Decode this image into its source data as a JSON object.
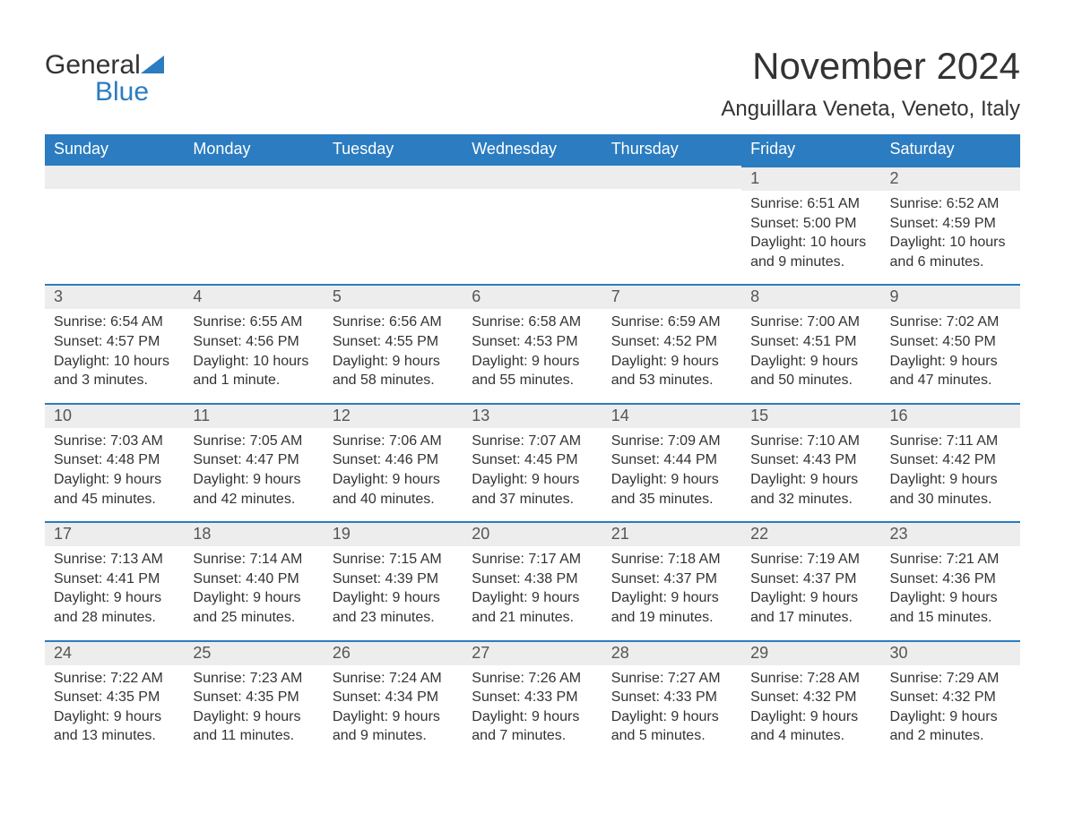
{
  "logo": {
    "text_main": "General",
    "text_accent": "Blue",
    "main_color": "#333333",
    "accent_color": "#2b7cc0"
  },
  "title": "November 2024",
  "location": "Anguillara Veneta, Veneto, Italy",
  "weekdays": [
    "Sunday",
    "Monday",
    "Tuesday",
    "Wednesday",
    "Thursday",
    "Friday",
    "Saturday"
  ],
  "colors": {
    "header_bg": "#2b7cc0",
    "header_text": "#ffffff",
    "day_header_bg": "#ededed",
    "day_border": "#2b7cc0",
    "body_text": "#333333",
    "day_num_text": "#555555",
    "page_bg": "#ffffff"
  },
  "typography": {
    "title_fontsize": 42,
    "location_fontsize": 24,
    "weekday_fontsize": 18,
    "daynum_fontsize": 18,
    "body_fontsize": 16
  },
  "layout": {
    "type": "calendar",
    "columns": 7,
    "rows": 5,
    "leading_blanks": 5
  },
  "days": [
    {
      "n": "1",
      "sunrise": "Sunrise: 6:51 AM",
      "sunset": "Sunset: 5:00 PM",
      "daylight": "Daylight: 10 hours and 9 minutes."
    },
    {
      "n": "2",
      "sunrise": "Sunrise: 6:52 AM",
      "sunset": "Sunset: 4:59 PM",
      "daylight": "Daylight: 10 hours and 6 minutes."
    },
    {
      "n": "3",
      "sunrise": "Sunrise: 6:54 AM",
      "sunset": "Sunset: 4:57 PM",
      "daylight": "Daylight: 10 hours and 3 minutes."
    },
    {
      "n": "4",
      "sunrise": "Sunrise: 6:55 AM",
      "sunset": "Sunset: 4:56 PM",
      "daylight": "Daylight: 10 hours and 1 minute."
    },
    {
      "n": "5",
      "sunrise": "Sunrise: 6:56 AM",
      "sunset": "Sunset: 4:55 PM",
      "daylight": "Daylight: 9 hours and 58 minutes."
    },
    {
      "n": "6",
      "sunrise": "Sunrise: 6:58 AM",
      "sunset": "Sunset: 4:53 PM",
      "daylight": "Daylight: 9 hours and 55 minutes."
    },
    {
      "n": "7",
      "sunrise": "Sunrise: 6:59 AM",
      "sunset": "Sunset: 4:52 PM",
      "daylight": "Daylight: 9 hours and 53 minutes."
    },
    {
      "n": "8",
      "sunrise": "Sunrise: 7:00 AM",
      "sunset": "Sunset: 4:51 PM",
      "daylight": "Daylight: 9 hours and 50 minutes."
    },
    {
      "n": "9",
      "sunrise": "Sunrise: 7:02 AM",
      "sunset": "Sunset: 4:50 PM",
      "daylight": "Daylight: 9 hours and 47 minutes."
    },
    {
      "n": "10",
      "sunrise": "Sunrise: 7:03 AM",
      "sunset": "Sunset: 4:48 PM",
      "daylight": "Daylight: 9 hours and 45 minutes."
    },
    {
      "n": "11",
      "sunrise": "Sunrise: 7:05 AM",
      "sunset": "Sunset: 4:47 PM",
      "daylight": "Daylight: 9 hours and 42 minutes."
    },
    {
      "n": "12",
      "sunrise": "Sunrise: 7:06 AM",
      "sunset": "Sunset: 4:46 PM",
      "daylight": "Daylight: 9 hours and 40 minutes."
    },
    {
      "n": "13",
      "sunrise": "Sunrise: 7:07 AM",
      "sunset": "Sunset: 4:45 PM",
      "daylight": "Daylight: 9 hours and 37 minutes."
    },
    {
      "n": "14",
      "sunrise": "Sunrise: 7:09 AM",
      "sunset": "Sunset: 4:44 PM",
      "daylight": "Daylight: 9 hours and 35 minutes."
    },
    {
      "n": "15",
      "sunrise": "Sunrise: 7:10 AM",
      "sunset": "Sunset: 4:43 PM",
      "daylight": "Daylight: 9 hours and 32 minutes."
    },
    {
      "n": "16",
      "sunrise": "Sunrise: 7:11 AM",
      "sunset": "Sunset: 4:42 PM",
      "daylight": "Daylight: 9 hours and 30 minutes."
    },
    {
      "n": "17",
      "sunrise": "Sunrise: 7:13 AM",
      "sunset": "Sunset: 4:41 PM",
      "daylight": "Daylight: 9 hours and 28 minutes."
    },
    {
      "n": "18",
      "sunrise": "Sunrise: 7:14 AM",
      "sunset": "Sunset: 4:40 PM",
      "daylight": "Daylight: 9 hours and 25 minutes."
    },
    {
      "n": "19",
      "sunrise": "Sunrise: 7:15 AM",
      "sunset": "Sunset: 4:39 PM",
      "daylight": "Daylight: 9 hours and 23 minutes."
    },
    {
      "n": "20",
      "sunrise": "Sunrise: 7:17 AM",
      "sunset": "Sunset: 4:38 PM",
      "daylight": "Daylight: 9 hours and 21 minutes."
    },
    {
      "n": "21",
      "sunrise": "Sunrise: 7:18 AM",
      "sunset": "Sunset: 4:37 PM",
      "daylight": "Daylight: 9 hours and 19 minutes."
    },
    {
      "n": "22",
      "sunrise": "Sunrise: 7:19 AM",
      "sunset": "Sunset: 4:37 PM",
      "daylight": "Daylight: 9 hours and 17 minutes."
    },
    {
      "n": "23",
      "sunrise": "Sunrise: 7:21 AM",
      "sunset": "Sunset: 4:36 PM",
      "daylight": "Daylight: 9 hours and 15 minutes."
    },
    {
      "n": "24",
      "sunrise": "Sunrise: 7:22 AM",
      "sunset": "Sunset: 4:35 PM",
      "daylight": "Daylight: 9 hours and 13 minutes."
    },
    {
      "n": "25",
      "sunrise": "Sunrise: 7:23 AM",
      "sunset": "Sunset: 4:35 PM",
      "daylight": "Daylight: 9 hours and 11 minutes."
    },
    {
      "n": "26",
      "sunrise": "Sunrise: 7:24 AM",
      "sunset": "Sunset: 4:34 PM",
      "daylight": "Daylight: 9 hours and 9 minutes."
    },
    {
      "n": "27",
      "sunrise": "Sunrise: 7:26 AM",
      "sunset": "Sunset: 4:33 PM",
      "daylight": "Daylight: 9 hours and 7 minutes."
    },
    {
      "n": "28",
      "sunrise": "Sunrise: 7:27 AM",
      "sunset": "Sunset: 4:33 PM",
      "daylight": "Daylight: 9 hours and 5 minutes."
    },
    {
      "n": "29",
      "sunrise": "Sunrise: 7:28 AM",
      "sunset": "Sunset: 4:32 PM",
      "daylight": "Daylight: 9 hours and 4 minutes."
    },
    {
      "n": "30",
      "sunrise": "Sunrise: 7:29 AM",
      "sunset": "Sunset: 4:32 PM",
      "daylight": "Daylight: 9 hours and 2 minutes."
    }
  ]
}
